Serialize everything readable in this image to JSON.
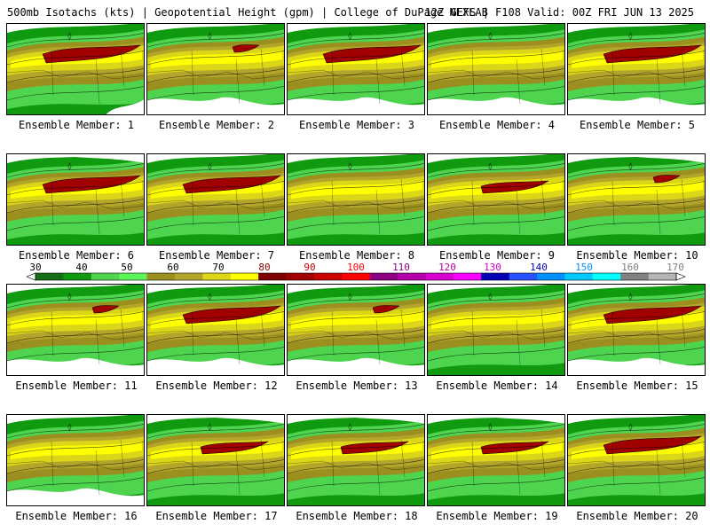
{
  "header": {
    "left": "500mb Isotachs (kts) | Geopotential Height (gpm) | College of DuPage NEXLAB",
    "right": "12Z GEFS | F108 Valid: 00Z FRI JUN 13 2025"
  },
  "legend": {
    "ticks": [
      "30",
      "40",
      "50",
      "60",
      "70",
      "80",
      "90",
      "100",
      "110",
      "120",
      "130",
      "140",
      "150",
      "160",
      "170"
    ],
    "colors": [
      "#156d15",
      "#0f9a0f",
      "#4ed44e",
      "#5cf55c",
      "#9b8f1f",
      "#b3a52a",
      "#dcd619",
      "#ffff00",
      "#7d0000",
      "#a00000",
      "#c80000",
      "#ff0000",
      "#8e0082",
      "#b400a8",
      "#d800cf",
      "#ff00ff",
      "#0000b4",
      "#2850ff",
      "#0090ff",
      "#00c8ff",
      "#00ffff",
      "#808080",
      "#b4b4b4"
    ]
  },
  "panels": [
    {
      "label": "Ensemble Member: 1",
      "jet": "strong",
      "wind_mask": "sparse-east"
    },
    {
      "label": "Ensemble Member: 2",
      "jet": "small",
      "wind_mask": "sparse-south"
    },
    {
      "label": "Ensemble Member: 3",
      "jet": "strong",
      "wind_mask": "sparse-south"
    },
    {
      "label": "Ensemble Member: 4",
      "jet": "none",
      "wind_mask": "sparse-south"
    },
    {
      "label": "Ensemble Member: 5",
      "jet": "strong",
      "wind_mask": "sparse-south"
    },
    {
      "label": "Ensemble Member: 6",
      "jet": "strong",
      "wind_mask": "sparse-north"
    },
    {
      "label": "Ensemble Member: 7",
      "jet": "strong",
      "wind_mask": "full"
    },
    {
      "label": "Ensemble Member: 8",
      "jet": "none",
      "wind_mask": "full"
    },
    {
      "label": "Ensemble Member: 9",
      "jet": "medium",
      "wind_mask": "full"
    },
    {
      "label": "Ensemble Member: 10",
      "jet": "small",
      "wind_mask": "sparse-north"
    },
    {
      "label": "Ensemble Member: 11",
      "jet": "small",
      "wind_mask": "sparse-south"
    },
    {
      "label": "Ensemble Member: 12",
      "jet": "strong",
      "wind_mask": "sparse-south"
    },
    {
      "label": "Ensemble Member: 13",
      "jet": "small",
      "wind_mask": "sparse-south"
    },
    {
      "label": "Ensemble Member: 14",
      "jet": "none",
      "wind_mask": "full"
    },
    {
      "label": "Ensemble Member: 15",
      "jet": "strong",
      "wind_mask": "sparse-south"
    },
    {
      "label": "Ensemble Member: 16",
      "jet": "none",
      "wind_mask": "sparse-south"
    },
    {
      "label": "Ensemble Member: 17",
      "jet": "medium",
      "wind_mask": "sparse-north"
    },
    {
      "label": "Ensemble Member: 18",
      "jet": "medium",
      "wind_mask": "sparse-north"
    },
    {
      "label": "Ensemble Member: 19",
      "jet": "medium",
      "wind_mask": "sparse-north"
    },
    {
      "label": "Ensemble Member: 20",
      "jet": "strong",
      "wind_mask": "full"
    }
  ]
}
